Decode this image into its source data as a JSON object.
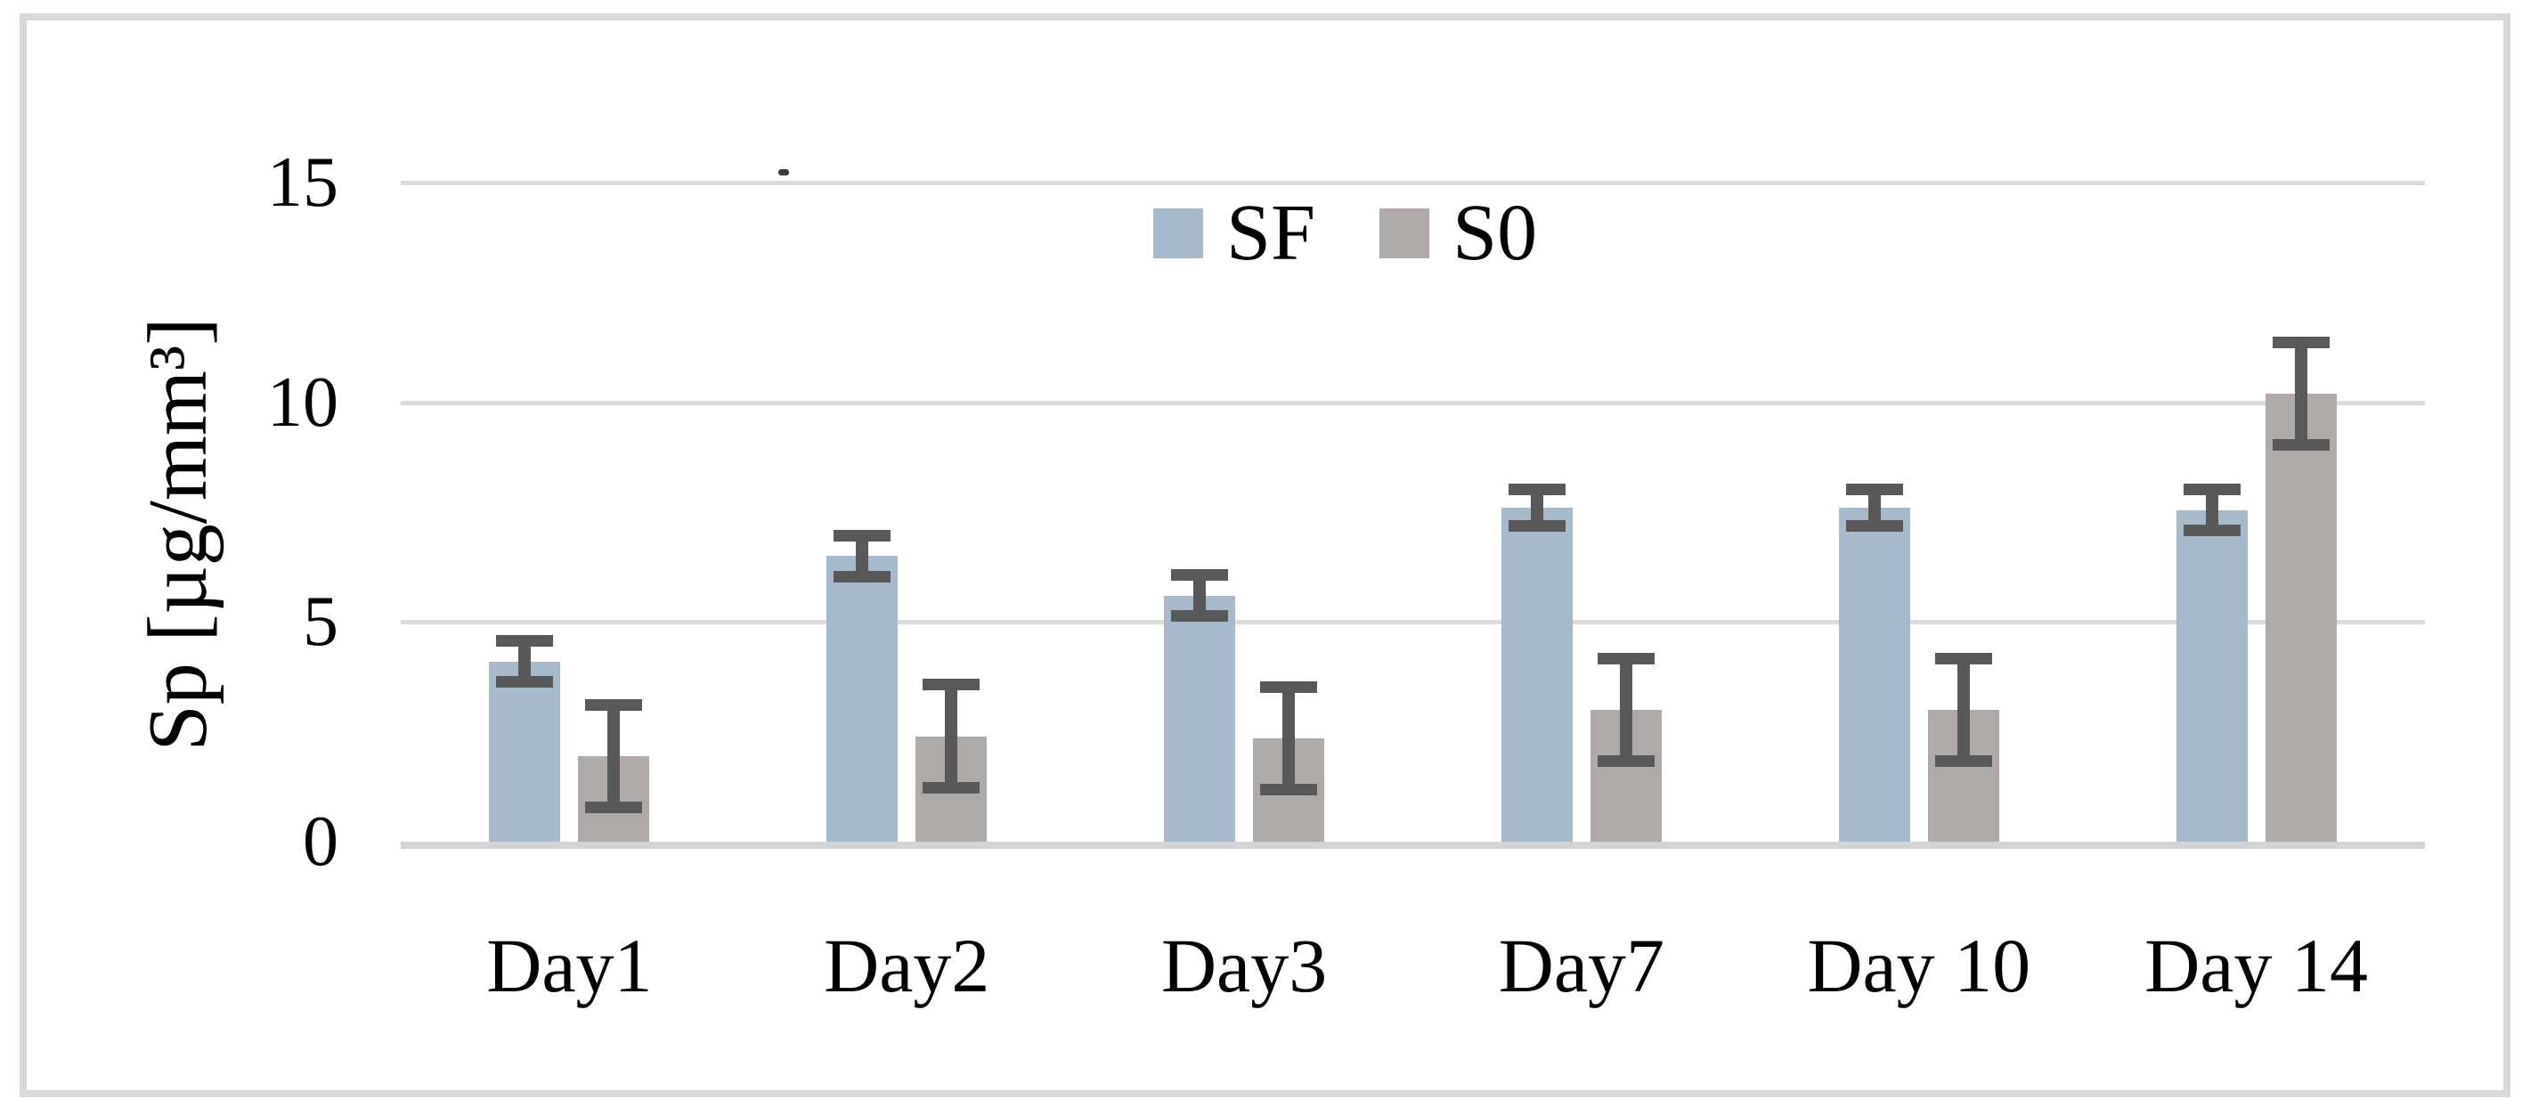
{
  "chart_data": {
    "type": "bar",
    "title": "",
    "ylabel": "Sp [µg/mm³]",
    "xlabel": "",
    "categories": [
      "Day1",
      "Day2",
      "Day3",
      "Day7",
      "Day 10",
      "Day 14"
    ],
    "series": [
      {
        "name": "SF",
        "color": "#a7b9cb",
        "values": [
          4.1,
          6.5,
          5.6,
          7.6,
          7.6,
          7.55
        ],
        "errors": [
          0.6,
          0.6,
          0.6,
          0.55,
          0.55,
          0.6
        ]
      },
      {
        "name": "S0",
        "color": "#afaaa8",
        "values": [
          1.95,
          2.4,
          2.35,
          3.0,
          3.0,
          10.2
        ],
        "errors": [
          1.3,
          1.3,
          1.3,
          1.3,
          1.3,
          1.3
        ]
      }
    ],
    "yticks": [
      0,
      5,
      10,
      15
    ],
    "ylim": [
      0,
      15
    ],
    "grid": true,
    "legend_position": "top-center",
    "colors": {
      "error_bar": "#595959",
      "gridline": "#dadada",
      "axis_line": "#d4d4d4",
      "text": "#000000",
      "border": "#d9d9d9",
      "background": "#ffffff"
    }
  }
}
